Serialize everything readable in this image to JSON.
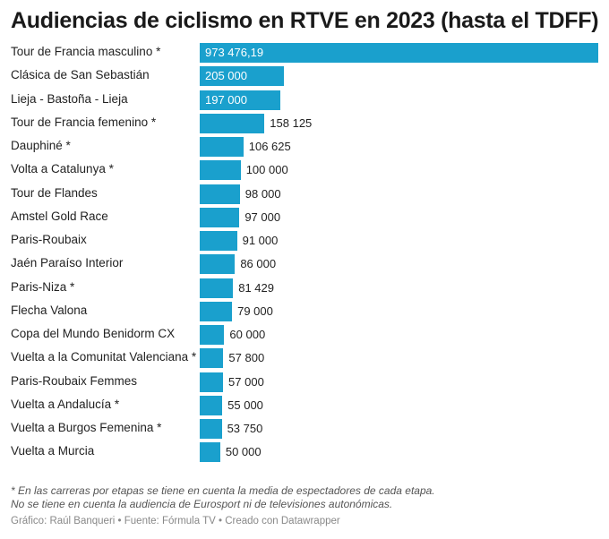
{
  "title": "Audiencias de ciclismo en RTVE en 2023 (hasta el TDFF)",
  "chart_data": {
    "type": "bar",
    "orientation": "horizontal",
    "title": "Audiencias de ciclismo en RTVE en 2023 (hasta el TDFF)",
    "categories": [
      "Tour de Francia masculino *",
      "Clásica de San Sebastián",
      "Lieja - Bastoña - Lieja",
      "Tour de Francia femenino *",
      "Dauphiné *",
      "Volta a Catalunya *",
      "Tour de Flandes",
      "Amstel Gold Race",
      "Paris-Roubaix",
      "Jaén Paraíso Interior",
      "Paris-Niza *",
      "Flecha Valona",
      "Copa del Mundo Benidorm CX",
      "Vuelta a la Comunitat Valenciana *",
      "Paris-Roubaix Femmes",
      "Vuelta a Andalucía *",
      "Vuelta a Burgos Femenina *",
      "Vuelta a Murcia"
    ],
    "values": [
      973476.19,
      205000,
      197000,
      158125,
      106625,
      100000,
      98000,
      97000,
      91000,
      86000,
      81429,
      79000,
      60000,
      57800,
      57000,
      55000,
      53750,
      50000
    ],
    "value_labels": [
      "973 476,19",
      "205 000",
      "197 000",
      "158 125",
      "106 625",
      "100 000",
      "98 000",
      "97 000",
      "91 000",
      "86 000",
      "81 429",
      "79 000",
      "60 000",
      "57 800",
      "57 000",
      "55 000",
      "53 750",
      "50 000"
    ],
    "xlim": [
      0,
      973476.19
    ],
    "bar_color": "#1aa0cd"
  },
  "notes": [
    "* En las carreras por etapas se tiene en cuenta la media de espectadores de cada etapa.",
    "No se tiene en cuenta la audiencia de Eurosport ni de televisiones autonómicas."
  ],
  "footer": "Gráfico: Raúl Banqueri • Fuente: Fórmula TV • Creado con Datawrapper"
}
